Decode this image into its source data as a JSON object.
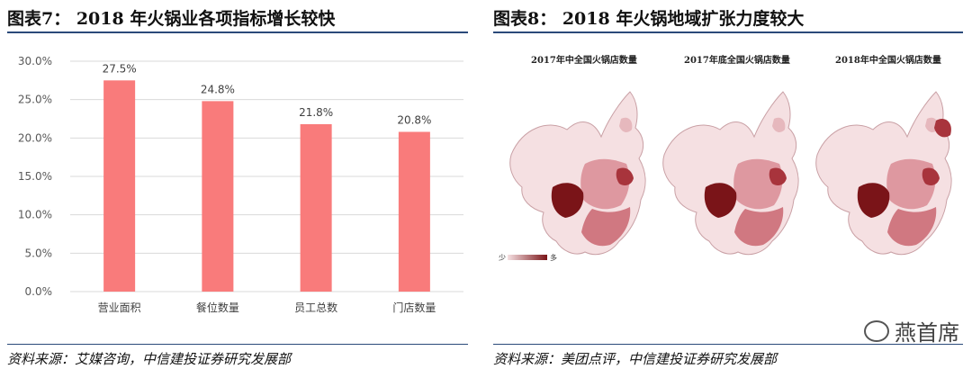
{
  "left_panel": {
    "title": "图表7：  2018 年火锅业各项指标增长较快",
    "source": "资料来源：艾媒咨询，中信建投证券研究发展部"
  },
  "right_panel": {
    "title": "图表8：  2018 年火锅地域扩张力度较大",
    "source": "资料来源：美团点评，中信建投证券研究发展部",
    "maps": [
      {
        "title": "2017年中全国火锅店数量"
      },
      {
        "title": "2017年底全国火锅店数量"
      },
      {
        "title": "2018年中全国火锅店数量"
      }
    ],
    "legend_low": "少",
    "legend_high": "多"
  },
  "watermark": "燕首席",
  "colors": {
    "bar": "#f97b7b",
    "rule": "#2a4a7a",
    "map_dark": "#7a1418",
    "map_light": "#f5e0e2"
  },
  "chart_data": {
    "type": "bar",
    "categories": [
      "营业面积",
      "餐位数量",
      "员工总数",
      "门店数量"
    ],
    "values": [
      27.5,
      24.8,
      21.8,
      20.8
    ],
    "value_labels": [
      "27.5%",
      "24.8%",
      "21.8%",
      "20.8%"
    ],
    "ylim": [
      0,
      30
    ],
    "yticks": [
      "0.0%",
      "5.0%",
      "10.0%",
      "15.0%",
      "20.0%",
      "25.0%",
      "30.0%"
    ],
    "grid": true
  }
}
